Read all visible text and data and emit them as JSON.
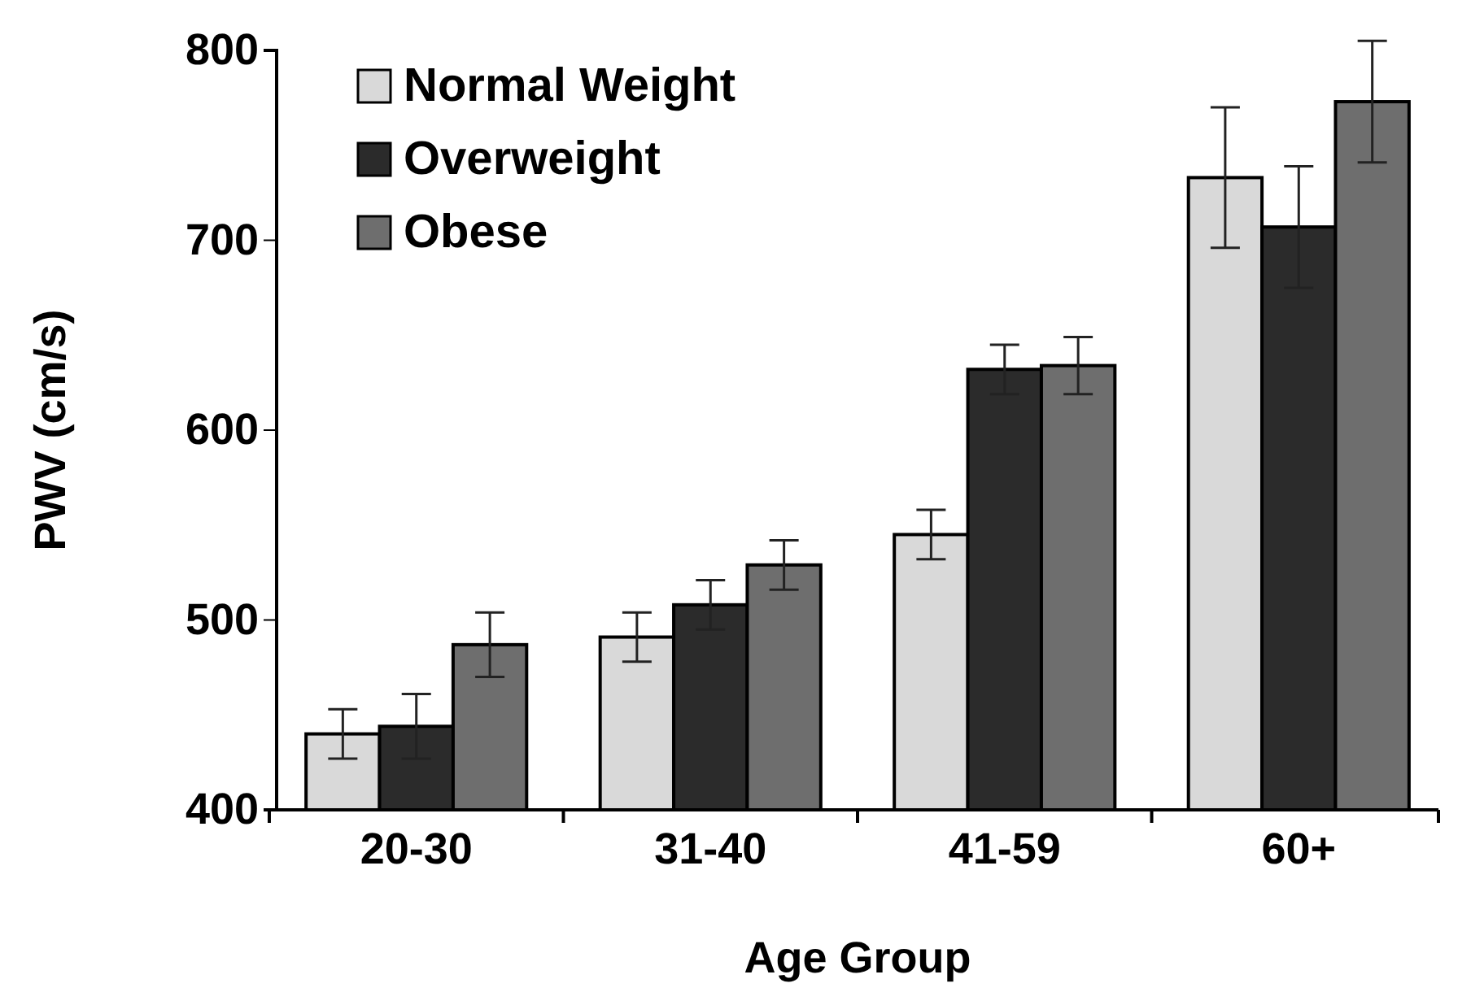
{
  "chart_data": {
    "type": "bar",
    "xlabel": "Age Group",
    "ylabel": "PWV (cm/s)",
    "categories": [
      "20-30",
      "31-40",
      "41-59",
      "60+"
    ],
    "series": [
      {
        "name": "Normal Weight",
        "color": "#d9d9d9",
        "values": [
          440,
          491,
          545,
          733
        ],
        "errors": [
          13,
          13,
          13,
          37
        ]
      },
      {
        "name": "Overweight",
        "color": "#2b2b2b",
        "values": [
          444,
          508,
          632,
          707
        ],
        "errors": [
          17,
          13,
          13,
          32
        ]
      },
      {
        "name": "Obese",
        "color": "#6e6e6e",
        "values": [
          487,
          529,
          634,
          773
        ],
        "errors": [
          17,
          13,
          15,
          32
        ]
      }
    ],
    "ylim": [
      400,
      800
    ],
    "yticks": [
      400,
      500,
      600,
      700,
      800
    ],
    "grid": false,
    "legend": "top left"
  }
}
